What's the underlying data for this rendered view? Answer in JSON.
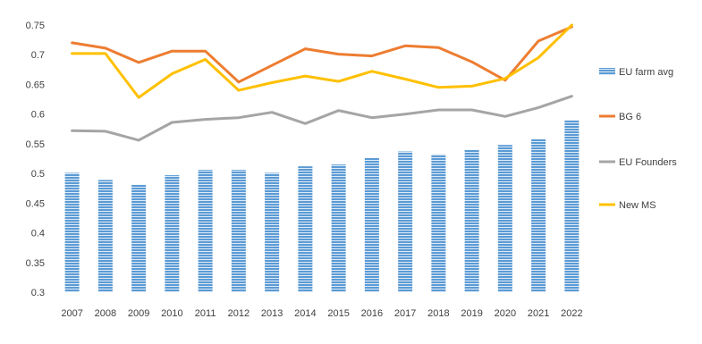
{
  "chart_data": {
    "type": "bar",
    "title": "",
    "xlabel": "",
    "ylabel": "",
    "categories": [
      "2007",
      "2008",
      "2009",
      "2010",
      "2011",
      "2012",
      "2013",
      "2014",
      "2015",
      "2016",
      "2017",
      "2018",
      "2019",
      "2020",
      "2021",
      "2022"
    ],
    "ylim": [
      0.3,
      0.75
    ],
    "yticks": [
      "0.3",
      "0.35",
      "0.4",
      "0.45",
      "0.5",
      "0.55",
      "0.6",
      "0.65",
      "0.7",
      "0.75"
    ],
    "grid": false,
    "legend_position": "right",
    "series": [
      {
        "name": "EU farm avg",
        "type": "bar",
        "color": "#5B9BD5",
        "values": [
          0.501,
          0.489,
          0.481,
          0.497,
          0.506,
          0.506,
          0.501,
          0.512,
          0.515,
          0.526,
          0.537,
          0.532,
          0.54,
          0.548,
          0.558,
          0.59
        ]
      },
      {
        "name": "BG 6",
        "type": "line",
        "color": "#ED7D31",
        "values": [
          0.72,
          0.711,
          0.687,
          0.706,
          0.706,
          0.654,
          0.682,
          0.71,
          0.701,
          0.698,
          0.715,
          0.712,
          0.688,
          0.657,
          0.723,
          0.747
        ]
      },
      {
        "name": "EU Founders",
        "type": "line",
        "color": "#A5A5A5",
        "values": [
          0.572,
          0.571,
          0.556,
          0.586,
          0.591,
          0.594,
          0.603,
          0.584,
          0.606,
          0.594,
          0.6,
          0.607,
          0.607,
          0.596,
          0.611,
          0.63
        ]
      },
      {
        "name": "New MS",
        "type": "line",
        "color": "#FFC000",
        "values": [
          0.702,
          0.702,
          0.628,
          0.668,
          0.692,
          0.64,
          0.653,
          0.664,
          0.655,
          0.672,
          0.659,
          0.645,
          0.647,
          0.66,
          0.695,
          0.75
        ]
      }
    ]
  }
}
